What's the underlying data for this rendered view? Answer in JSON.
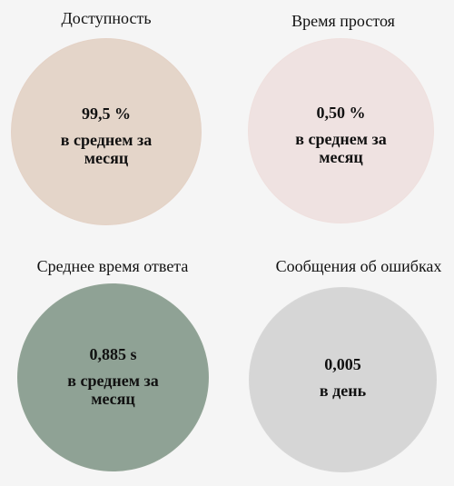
{
  "colors": {
    "background": "#f5f5f5",
    "availability_circle": "#e4d5c9",
    "downtime_circle": "#efe2e1",
    "response_circle": "#8fa295",
    "errors_circle": "#d6d6d6",
    "text": "#111111"
  },
  "metrics": [
    {
      "title": "Доступность",
      "value": "99,5 %",
      "description": "в среднем за месяц"
    },
    {
      "title": "Время простоя",
      "value": "0,50 %",
      "description": "в среднем за месяц"
    },
    {
      "title": "Среднее время ответа",
      "value": "0,885 s",
      "description": "в среднем за месяц"
    },
    {
      "title": "Сообщения об ошибках",
      "value": "0,005",
      "description": "в день"
    }
  ]
}
